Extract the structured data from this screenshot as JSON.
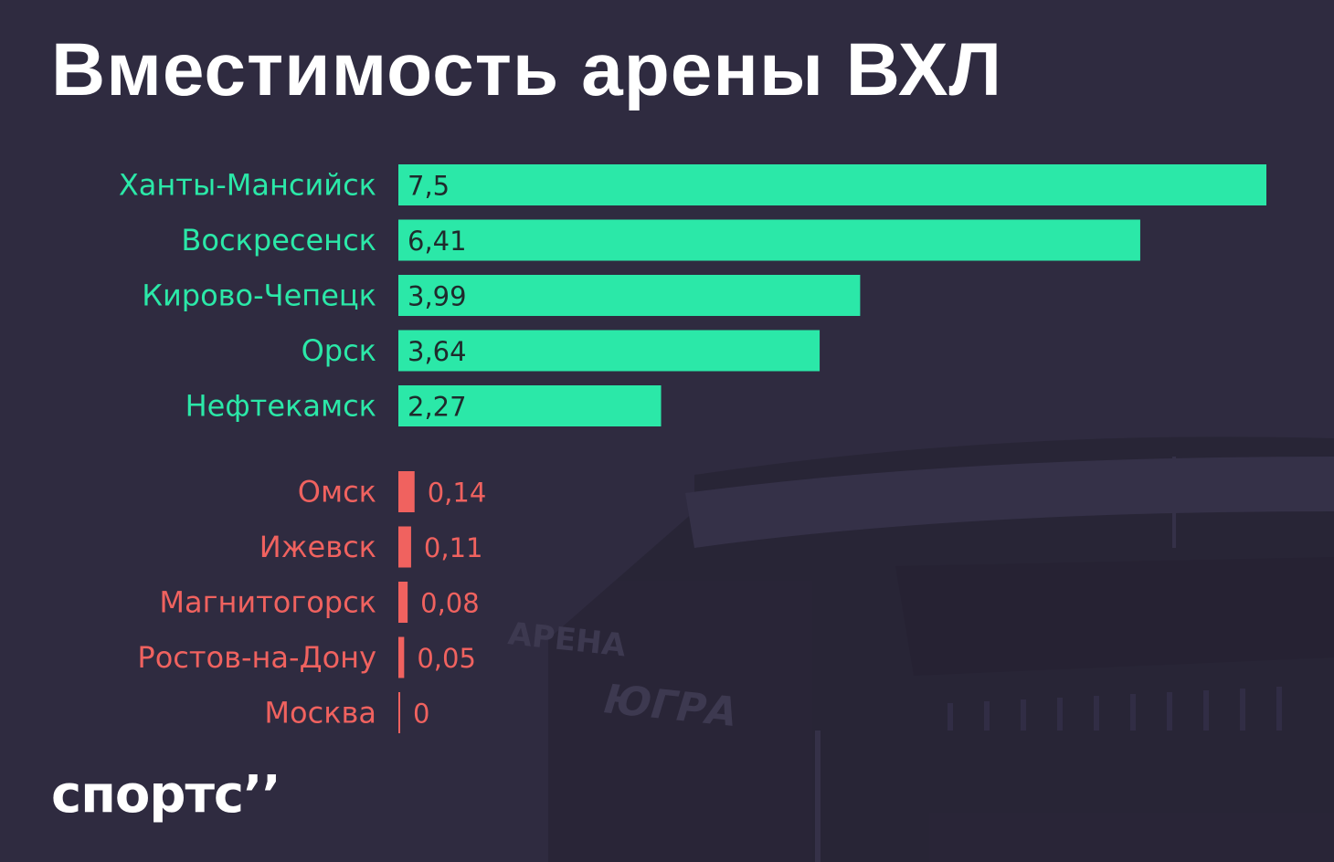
{
  "title": "Вместимость арены ВХЛ",
  "brand": "спортс’’",
  "colors": {
    "background": "#2f2b40",
    "high_group": "#2be8a8",
    "low_group": "#f0625f",
    "high_value_text": "#1f2a2c",
    "title": "#ffffff"
  },
  "background_photo": {
    "sign_lines": [
      "АРЕНА",
      "ЮГРА"
    ]
  },
  "chart_data": {
    "type": "bar",
    "orientation": "horizontal",
    "decimal_separator": ",",
    "x_max": 7.5,
    "grid": false,
    "legend": "none",
    "groups": [
      {
        "color": "#2be8a8",
        "value_inside_bar": true,
        "categories": [
          "Ханты-Мансийск",
          "Воскресенск",
          "Кирово-Чепецк",
          "Орск",
          "Нефтекамск"
        ],
        "values": [
          7.5,
          6.41,
          3.99,
          3.64,
          2.27
        ],
        "value_labels": [
          "7,5",
          "6,41",
          "3,99",
          "3,64",
          "2,27"
        ]
      },
      {
        "color": "#f0625f",
        "value_inside_bar": false,
        "categories": [
          "Омск",
          "Ижевск",
          "Магнитогорск",
          "Ростов-на-Дону",
          "Москва"
        ],
        "values": [
          0.14,
          0.11,
          0.08,
          0.05,
          0
        ],
        "value_labels": [
          "0,14",
          "0,11",
          "0,08",
          "0,05",
          "0"
        ]
      }
    ]
  }
}
